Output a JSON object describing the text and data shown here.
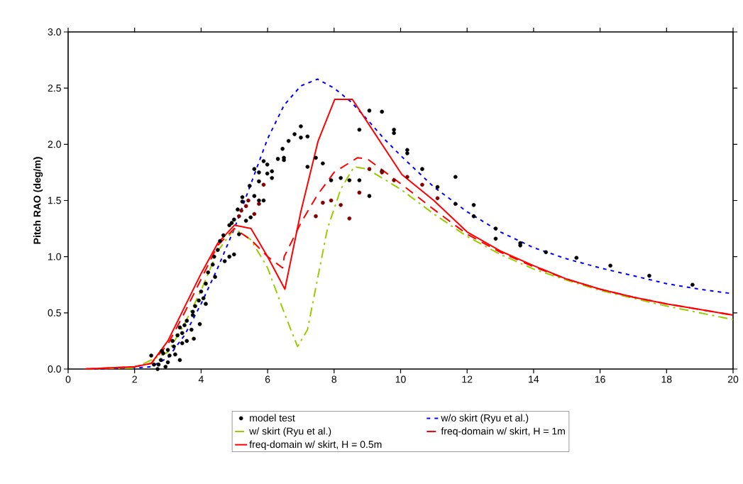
{
  "chart_data": {
    "type": "line",
    "ylabel": "Pitch RAO (deg/m)",
    "xlim": [
      0,
      20
    ],
    "ylim": [
      0,
      3
    ],
    "xticks": [
      0,
      2,
      4,
      6,
      8,
      10,
      12,
      14,
      16,
      18,
      20
    ],
    "yticks": [
      {
        "value": 0,
        "label": "0.0"
      },
      0.5,
      {
        "value": 1,
        "label": "1.0"
      },
      1.5,
      {
        "value": 2,
        "label": "2.0"
      },
      2.5,
      {
        "value": 3,
        "label": "3.0"
      }
    ],
    "legend": "bottom",
    "series": [
      {
        "name": "model test",
        "type": "scatter",
        "marker": "circle",
        "color": "#000000",
        "x": [
          2.5,
          2.58,
          2.69,
          2.72,
          2.79,
          2.82,
          2.86,
          2.93,
          3.0,
          3.0,
          3.05,
          3.14,
          3.18,
          3.22,
          3.29,
          3.36,
          3.36,
          3.43,
          3.43,
          3.5,
          3.57,
          3.57,
          3.71,
          3.75,
          3.75,
          3.78,
          3.82,
          3.93,
          3.96,
          4.0,
          4.07,
          4.14,
          4.14,
          4.21,
          4.35,
          4.39,
          4.42,
          4.5,
          4.57,
          4.67,
          4.71,
          4.85,
          4.85,
          4.92,
          4.99,
          4.99,
          5.1,
          5.14,
          5.24,
          5.24,
          5.35,
          5.46,
          5.49,
          5.6,
          5.6,
          5.74,
          5.74,
          5.74,
          5.88,
          5.88,
          5.99,
          5.99,
          6.13,
          6.13,
          6.31,
          6.45,
          6.49,
          6.49,
          6.63,
          6.81,
          7.0,
          7.0,
          7.2,
          7.2,
          7.45,
          7.66,
          7.91,
          8.2,
          8.46,
          8.76,
          8.76,
          9.06,
          9.06,
          9.44,
          9.44,
          9.8,
          9.8,
          10.2,
          10.2,
          10.65,
          11.11,
          11.65,
          11.65,
          12.2,
          12.2,
          12.86,
          12.86,
          13.6,
          13.6,
          14.37,
          15.29,
          16.31,
          17.48,
          18.78
        ],
        "values": [
          0.12,
          0.04,
          0.0,
          0.04,
          0.08,
          0.16,
          0.14,
          0.02,
          0.17,
          0.06,
          0.12,
          0.25,
          0.2,
          0.13,
          0.3,
          0.37,
          0.08,
          0.32,
          0.23,
          0.39,
          0.43,
          0.25,
          0.35,
          0.51,
          0.48,
          0.27,
          0.56,
          0.61,
          0.4,
          0.69,
          0.63,
          0.76,
          0.58,
          0.86,
          0.93,
          1.0,
          0.82,
          1.06,
          1.14,
          1.19,
          0.96,
          1.28,
          1.0,
          1.3,
          1.33,
          1.02,
          1.42,
          1.2,
          1.53,
          1.49,
          1.32,
          1.63,
          1.35,
          1.78,
          1.54,
          1.75,
          1.67,
          1.5,
          1.85,
          1.5,
          1.82,
          1.74,
          1.76,
          1.7,
          1.87,
          1.96,
          1.86,
          1.88,
          2.03,
          2.09,
          2.16,
          2.06,
          2.07,
          1.8,
          1.88,
          1.83,
          1.68,
          1.7,
          1.68,
          2.13,
          1.68,
          2.3,
          1.54,
          2.29,
          1.76,
          2.13,
          2.1,
          1.95,
          1.92,
          1.78,
          1.62,
          1.71,
          1.47,
          1.46,
          1.36,
          1.25,
          1.16,
          1.12,
          1.1,
          1.04,
          0.99,
          0.92,
          0.83,
          0.75
        ]
      },
      {
        "type": "scatter",
        "marker": "circle",
        "color": "#800000",
        "x": [
          5.14,
          5.21,
          5.35,
          5.42,
          5.6,
          5.74,
          5.88,
          7.45,
          7.66,
          7.91,
          8.2,
          8.46,
          8.76,
          9.06,
          9.44,
          9.8,
          10.2,
          10.65,
          11.11
        ],
        "values": [
          1.36,
          1.41,
          1.45,
          1.5,
          1.38,
          1.47,
          1.64,
          1.36,
          1.48,
          1.5,
          1.46,
          1.34,
          1.57,
          1.78,
          1.75,
          1.68,
          1.71,
          1.64,
          1.52
        ]
      },
      {
        "name": "w/o skirt (Ryu et al.)",
        "line_style": "dotted",
        "color": "#0000ff",
        "x": [
          0.5,
          2.0,
          2.5,
          3.0,
          3.5,
          4.0,
          4.5,
          5.0,
          5.5,
          6.0,
          6.5,
          7.0,
          7.5,
          8.0,
          8.5,
          9.0,
          9.5,
          10.0,
          11.0,
          12.0,
          13.0,
          14.0,
          15.0,
          16.0,
          17.0,
          18.0,
          19.0,
          20.0
        ],
        "values": [
          0.0,
          0.01,
          0.02,
          0.1,
          0.3,
          0.58,
          0.9,
          1.25,
          1.65,
          2.05,
          2.35,
          2.52,
          2.58,
          2.5,
          2.38,
          2.22,
          2.05,
          1.9,
          1.62,
          1.4,
          1.22,
          1.08,
          0.98,
          0.9,
          0.83,
          0.76,
          0.71,
          0.67
        ]
      },
      {
        "name": "w/ skirt (Ryu et al.)",
        "line_style": "dashdot",
        "color": "#99cc00",
        "x": [
          0.5,
          2.0,
          3.0,
          3.5,
          4.0,
          4.5,
          5.0,
          5.5,
          6.0,
          6.5,
          6.9,
          7.2,
          7.5,
          7.8,
          8.2,
          8.6,
          9.0,
          10.0,
          11.0,
          12.0,
          13.0,
          14.0,
          15.0,
          16.0,
          17.0,
          18.0,
          19.0,
          20.0
        ],
        "values": [
          0.0,
          0.01,
          0.15,
          0.4,
          0.7,
          1.05,
          1.25,
          1.15,
          0.9,
          0.5,
          0.2,
          0.35,
          0.8,
          1.25,
          1.6,
          1.8,
          1.78,
          1.6,
          1.38,
          1.18,
          1.02,
          0.89,
          0.79,
          0.7,
          0.63,
          0.56,
          0.5,
          0.44
        ]
      },
      {
        "name": "freq-domain w/ skirt, H = 1m",
        "line_style": "dashed",
        "color": "#ff0000",
        "x": [
          0.5,
          2.0,
          2.5,
          3.0,
          3.5,
          4.0,
          4.5,
          5.0,
          5.5,
          6.0,
          6.45,
          6.5,
          7.0,
          7.5,
          8.0,
          8.7,
          9.0,
          10.0,
          11.0,
          12.0,
          13.0,
          14.0,
          15.0,
          16.0,
          17.0,
          18.0,
          19.0,
          20.0
        ],
        "values": [
          0.0,
          0.02,
          0.05,
          0.22,
          0.5,
          0.8,
          1.1,
          1.25,
          1.15,
          1.0,
          0.9,
          1.0,
          1.3,
          1.55,
          1.75,
          1.88,
          1.87,
          1.65,
          1.42,
          1.2,
          1.04,
          0.91,
          0.8,
          0.71,
          0.64,
          0.58,
          0.53,
          0.48
        ]
      },
      {
        "name": "freq-domain w/ skirt, H = 0.5m",
        "line_style": "solid",
        "color": "#ff0000",
        "x": [
          0.5,
          2.0,
          2.5,
          3.0,
          3.5,
          4.0,
          4.5,
          5.0,
          5.5,
          6.0,
          6.52,
          7.0,
          7.52,
          8.02,
          8.55,
          10.04,
          11.0,
          12.0,
          13.0,
          14.0,
          15.0,
          16.0,
          17.0,
          18.0,
          19.0,
          20.0
        ],
        "values": [
          0.0,
          0.02,
          0.05,
          0.25,
          0.55,
          0.85,
          1.12,
          1.28,
          1.25,
          1.0,
          0.71,
          1.4,
          2.03,
          2.4,
          2.4,
          1.73,
          1.5,
          1.22,
          1.05,
          0.92,
          0.8,
          0.71,
          0.64,
          0.58,
          0.53,
          0.48
        ]
      }
    ]
  }
}
